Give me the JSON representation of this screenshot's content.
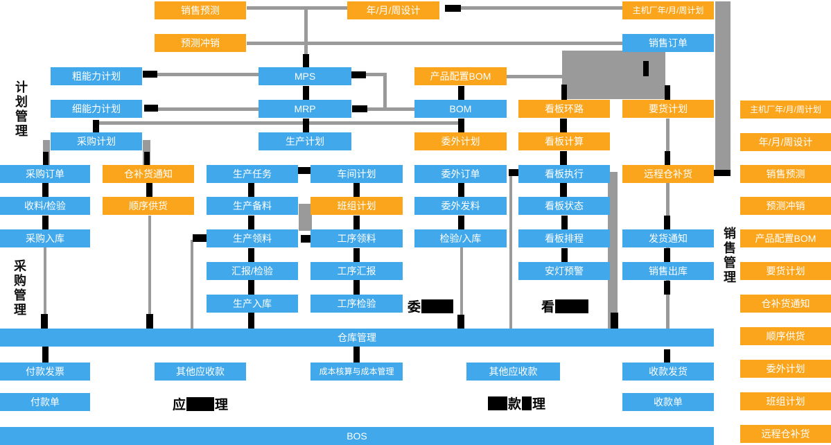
{
  "boxes": {
    "sales_forecast": "销售预测",
    "year_month_week_design": "年/月/周设计",
    "oem_year_month_week_plan": "主机厂年/月/周计划",
    "forecast_writeoff": "预测冲销",
    "sales_order": "销售订单",
    "rough_capacity_plan": "粗能力计划",
    "mps": "MPS",
    "product_config_bom": "产品配置BOM",
    "fine_capacity_plan": "细能力计划",
    "mrp": "MRP",
    "bom": "BOM",
    "kanban_loop": "看板环路",
    "delivery_plan": "要货计划",
    "purchase_plan": "采购计划",
    "production_plan": "生产计划",
    "outsourcing_plan": "委外计划",
    "kanban_calc": "看板计算",
    "purchase_order": "采购订单",
    "warehouse_replenish_notice": "仓补货通知",
    "production_task": "生产任务",
    "workshop_plan": "车间计划",
    "outsourcing_order": "委外订单",
    "kanban_exec": "看板执行",
    "remote_warehouse_replenish": "远程仓补货",
    "receiving_inspection": "收料/检验",
    "sequence_supply": "顺序供货",
    "production_prepare": "生产备料",
    "team_plan": "班组计划",
    "outsourcing_issue": "委外发料",
    "kanban_status": "看板状态",
    "purchase_inbound": "采购入库",
    "production_issue": "生产领料",
    "process_issue": "工序领料",
    "inspection_inbound": "检验/入库",
    "kanban_schedule": "看板排程",
    "shipping_notice": "发货通知",
    "report_inspection": "汇报/检验",
    "process_report": "工序汇报",
    "andon_warning": "安灯预警",
    "sales_outbound": "销售出库",
    "production_inbound": "生产入库",
    "process_inspection": "工序检验",
    "warehouse_mgmt": "仓库管理",
    "payment_invoice": "付款发票",
    "other_receivables_1": "其他应收款",
    "cost_accounting": "成本核算与成本管理",
    "other_receivables_2": "其他应收款",
    "receipt_delivery": "收款发货",
    "payment_slip": "付款单",
    "receipt_slip": "收款单",
    "bos": "BOS"
  },
  "legend": [
    "主机厂年/月/周计划",
    "年/月/周设计",
    "销售预测",
    "预测冲销",
    "产品配置BOM",
    "要货计划",
    "仓补货通知",
    "顺序供货",
    "委外计划",
    "班组计划",
    "远程仓补货"
  ],
  "side_labels": {
    "plan": "计划管理",
    "purchase": "采购管理",
    "sales": "销售管理"
  },
  "section_labels": {
    "outsourcing": {
      "visible": "委"
    },
    "kanban": {
      "visible": "看"
    },
    "payables": {
      "left": "应",
      "right": "理"
    },
    "receivables": {
      "mid": "款",
      "right": "理"
    }
  },
  "colors": {
    "blue": "#41A8EC",
    "orange": "#FBA51D",
    "gray": "#9A9A9A",
    "black": "#000000"
  }
}
